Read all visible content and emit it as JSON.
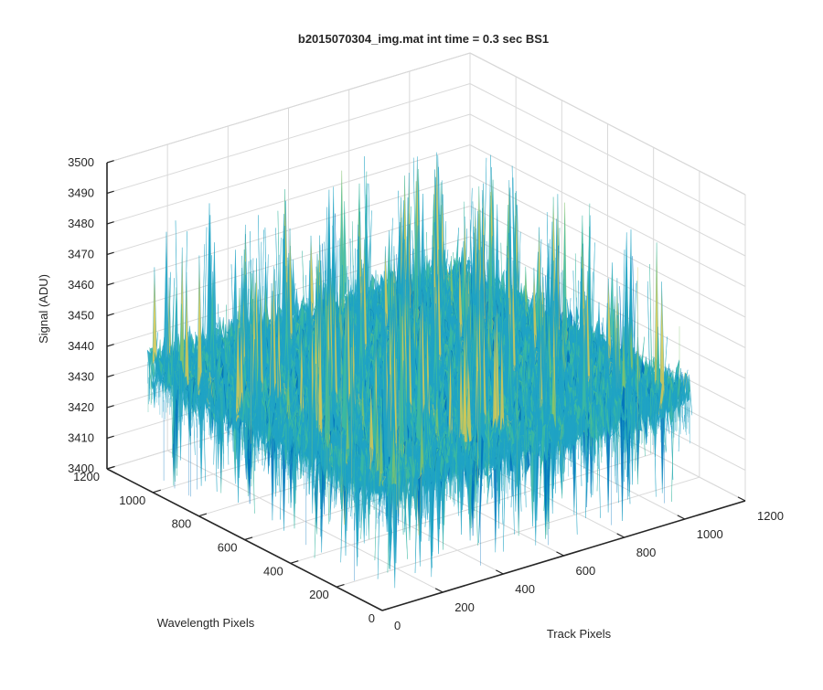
{
  "chart_data": {
    "type": "surface3d",
    "title": "b2015070304_img.mat int time = 0.3 sec   BS1",
    "xlabel": "Wavelength Pixels",
    "ylabel": "Track Pixels",
    "zlabel": "Signal (ADU)",
    "wavelength_ticks": [
      "0",
      "200",
      "400",
      "600",
      "800",
      "1000",
      "1200"
    ],
    "track_ticks": [
      "0",
      "200",
      "400",
      "600",
      "800",
      "1000",
      "1200"
    ],
    "signal_ticks": [
      "3400",
      "3410",
      "3420",
      "3430",
      "3440",
      "3450",
      "3460",
      "3470",
      "3480",
      "3490",
      "3500"
    ],
    "wavelength_range": [
      0,
      1200
    ],
    "track_range": [
      0,
      1200
    ],
    "signal_range": [
      3400,
      3500
    ],
    "data_extent": {
      "wavelength": [
        0,
        1024
      ],
      "track": [
        0,
        1024
      ]
    },
    "signal_mean": 3440,
    "signal_spread": [
      3420,
      3480
    ],
    "grid": true,
    "colormap": [
      "#0072bd",
      "#1fa3c4",
      "#3cb9a0",
      "#7fc26b",
      "#cfc858"
    ]
  }
}
